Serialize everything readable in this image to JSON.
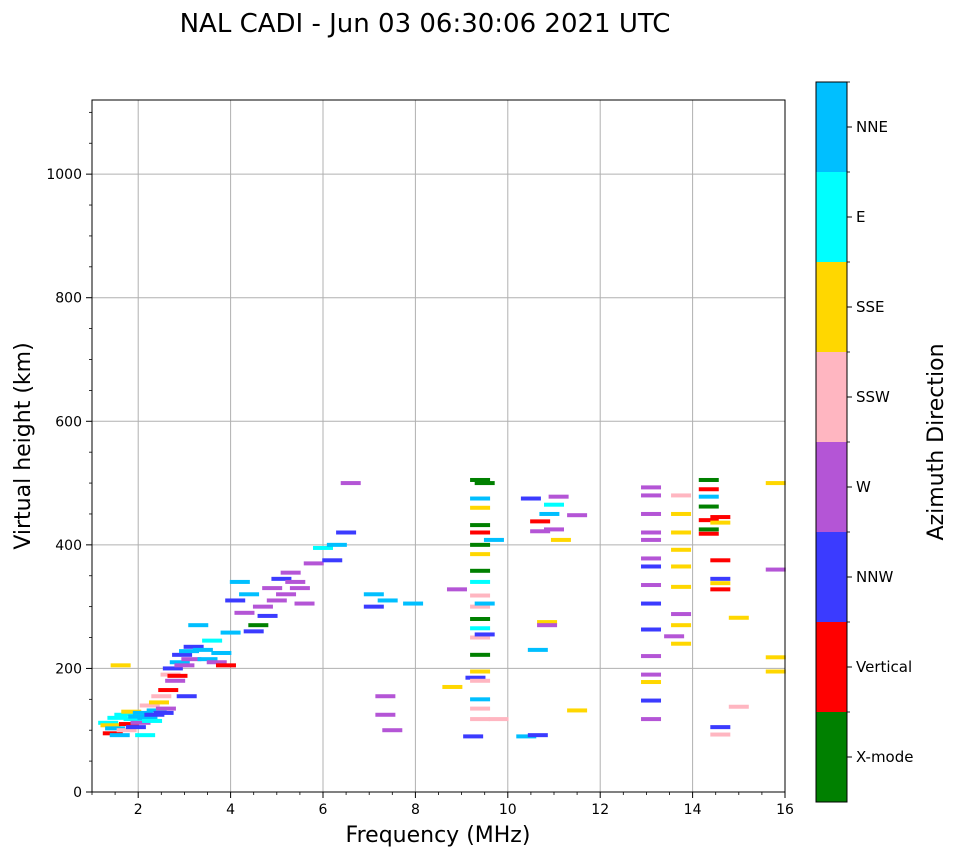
{
  "chart_data": {
    "type": "scatter",
    "title": "NAL CADI - Jun 03 06:30:06 2021 UTC",
    "xlabel": "Frequency (MHz)",
    "ylabel": "Virtual height (km)",
    "xlim": [
      1,
      16
    ],
    "ylim": [
      0,
      1120
    ],
    "xticks": [
      2,
      4,
      6,
      8,
      10,
      12,
      14,
      16
    ],
    "yticks": [
      0,
      200,
      400,
      600,
      800,
      1000
    ],
    "grid": true,
    "colorbar": {
      "label": "Azimuth Direction",
      "categories": [
        {
          "name": "X-mode",
          "color": "#008000"
        },
        {
          "name": "Vertical",
          "color": "#ff0000"
        },
        {
          "name": "NNW",
          "color": "#3b3bff"
        },
        {
          "name": "W",
          "color": "#b455d6"
        },
        {
          "name": "SSW",
          "color": "#ffb6c1"
        },
        {
          "name": "SSE",
          "color": "#ffd700"
        },
        {
          "name": "E",
          "color": "#00ffff"
        },
        {
          "name": "NNE",
          "color": "#00bfff"
        }
      ]
    },
    "points": [
      {
        "f": 1.35,
        "h": 112,
        "dir": "E"
      },
      {
        "f": 1.4,
        "h": 108,
        "dir": "SSE"
      },
      {
        "f": 1.45,
        "h": 95,
        "dir": "Vertical"
      },
      {
        "f": 1.5,
        "h": 103,
        "dir": "NNE"
      },
      {
        "f": 1.55,
        "h": 120,
        "dir": "E"
      },
      {
        "f": 1.6,
        "h": 92,
        "dir": "NNE"
      },
      {
        "f": 1.62,
        "h": 205,
        "dir": "SSE"
      },
      {
        "f": 1.7,
        "h": 125,
        "dir": "E"
      },
      {
        "f": 1.75,
        "h": 100,
        "dir": "SSW"
      },
      {
        "f": 1.8,
        "h": 110,
        "dir": "Vertical"
      },
      {
        "f": 1.85,
        "h": 130,
        "dir": "SSE"
      },
      {
        "f": 1.9,
        "h": 118,
        "dir": "E"
      },
      {
        "f": 1.95,
        "h": 105,
        "dir": "NNW"
      },
      {
        "f": 2.0,
        "h": 122,
        "dir": "NNE"
      },
      {
        "f": 2.05,
        "h": 112,
        "dir": "W"
      },
      {
        "f": 2.1,
        "h": 128,
        "dir": "NNE"
      },
      {
        "f": 2.15,
        "h": 92,
        "dir": "E"
      },
      {
        "f": 2.2,
        "h": 120,
        "dir": "NNE"
      },
      {
        "f": 2.25,
        "h": 140,
        "dir": "SSW"
      },
      {
        "f": 2.3,
        "h": 115,
        "dir": "E"
      },
      {
        "f": 2.35,
        "h": 125,
        "dir": "NNW"
      },
      {
        "f": 2.4,
        "h": 132,
        "dir": "NNE"
      },
      {
        "f": 2.45,
        "h": 145,
        "dir": "SSE"
      },
      {
        "f": 2.5,
        "h": 155,
        "dir": "SSW"
      },
      {
        "f": 2.55,
        "h": 128,
        "dir": "NNW"
      },
      {
        "f": 2.6,
        "h": 135,
        "dir": "W"
      },
      {
        "f": 2.65,
        "h": 165,
        "dir": "Vertical"
      },
      {
        "f": 2.7,
        "h": 190,
        "dir": "SSW"
      },
      {
        "f": 2.75,
        "h": 200,
        "dir": "NNW"
      },
      {
        "f": 2.8,
        "h": 180,
        "dir": "W"
      },
      {
        "f": 2.85,
        "h": 188,
        "dir": "Vertical"
      },
      {
        "f": 2.9,
        "h": 210,
        "dir": "NNE"
      },
      {
        "f": 2.95,
        "h": 222,
        "dir": "NNW"
      },
      {
        "f": 3.0,
        "h": 205,
        "dir": "W"
      },
      {
        "f": 3.05,
        "h": 155,
        "dir": "NNW"
      },
      {
        "f": 3.1,
        "h": 228,
        "dir": "NNE"
      },
      {
        "f": 3.15,
        "h": 215,
        "dir": "W"
      },
      {
        "f": 3.2,
        "h": 235,
        "dir": "NNW"
      },
      {
        "f": 3.3,
        "h": 270,
        "dir": "NNE"
      },
      {
        "f": 3.4,
        "h": 230,
        "dir": "NNE"
      },
      {
        "f": 3.5,
        "h": 215,
        "dir": "NNE"
      },
      {
        "f": 3.6,
        "h": 245,
        "dir": "E"
      },
      {
        "f": 3.7,
        "h": 210,
        "dir": "W"
      },
      {
        "f": 3.8,
        "h": 225,
        "dir": "NNE"
      },
      {
        "f": 3.9,
        "h": 205,
        "dir": "Vertical"
      },
      {
        "f": 4.0,
        "h": 258,
        "dir": "NNE"
      },
      {
        "f": 4.1,
        "h": 310,
        "dir": "NNW"
      },
      {
        "f": 4.2,
        "h": 340,
        "dir": "NNE"
      },
      {
        "f": 4.3,
        "h": 290,
        "dir": "W"
      },
      {
        "f": 4.4,
        "h": 320,
        "dir": "NNE"
      },
      {
        "f": 4.5,
        "h": 260,
        "dir": "NNW"
      },
      {
        "f": 4.6,
        "h": 270,
        "dir": "X-mode"
      },
      {
        "f": 4.7,
        "h": 300,
        "dir": "W"
      },
      {
        "f": 4.8,
        "h": 285,
        "dir": "NNW"
      },
      {
        "f": 4.9,
        "h": 330,
        "dir": "W"
      },
      {
        "f": 5.0,
        "h": 310,
        "dir": "W"
      },
      {
        "f": 5.1,
        "h": 345,
        "dir": "NNW"
      },
      {
        "f": 5.2,
        "h": 320,
        "dir": "W"
      },
      {
        "f": 5.3,
        "h": 355,
        "dir": "W"
      },
      {
        "f": 5.4,
        "h": 340,
        "dir": "W"
      },
      {
        "f": 5.5,
        "h": 330,
        "dir": "W"
      },
      {
        "f": 5.6,
        "h": 305,
        "dir": "W"
      },
      {
        "f": 5.8,
        "h": 370,
        "dir": "W"
      },
      {
        "f": 6.0,
        "h": 395,
        "dir": "E"
      },
      {
        "f": 6.2,
        "h": 375,
        "dir": "NNW"
      },
      {
        "f": 6.3,
        "h": 400,
        "dir": "NNE"
      },
      {
        "f": 6.5,
        "h": 420,
        "dir": "NNW"
      },
      {
        "f": 6.6,
        "h": 500,
        "dir": "W"
      },
      {
        "f": 7.1,
        "h": 320,
        "dir": "NNE"
      },
      {
        "f": 7.1,
        "h": 300,
        "dir": "NNW"
      },
      {
        "f": 7.4,
        "h": 310,
        "dir": "NNE"
      },
      {
        "f": 7.35,
        "h": 155,
        "dir": "W"
      },
      {
        "f": 7.35,
        "h": 125,
        "dir": "W"
      },
      {
        "f": 7.5,
        "h": 100,
        "dir": "W"
      },
      {
        "f": 7.95,
        "h": 305,
        "dir": "NNE"
      },
      {
        "f": 8.8,
        "h": 170,
        "dir": "SSE"
      },
      {
        "f": 8.9,
        "h": 328,
        "dir": "W"
      },
      {
        "f": 9.3,
        "h": 185,
        "dir": "NNW"
      },
      {
        "f": 9.25,
        "h": 90,
        "dir": "NNW"
      },
      {
        "f": 9.4,
        "h": 505,
        "dir": "X-mode"
      },
      {
        "f": 9.4,
        "h": 475,
        "dir": "NNE"
      },
      {
        "f": 9.4,
        "h": 460,
        "dir": "SSE"
      },
      {
        "f": 9.4,
        "h": 432,
        "dir": "X-mode"
      },
      {
        "f": 9.4,
        "h": 420,
        "dir": "Vertical"
      },
      {
        "f": 9.4,
        "h": 400,
        "dir": "X-mode"
      },
      {
        "f": 9.4,
        "h": 385,
        "dir": "SSE"
      },
      {
        "f": 9.4,
        "h": 358,
        "dir": "X-mode"
      },
      {
        "f": 9.4,
        "h": 340,
        "dir": "E"
      },
      {
        "f": 9.4,
        "h": 318,
        "dir": "SSW"
      },
      {
        "f": 9.4,
        "h": 300,
        "dir": "SSW"
      },
      {
        "f": 9.4,
        "h": 280,
        "dir": "X-mode"
      },
      {
        "f": 9.4,
        "h": 265,
        "dir": "E"
      },
      {
        "f": 9.4,
        "h": 250,
        "dir": "SSW"
      },
      {
        "f": 9.4,
        "h": 222,
        "dir": "X-mode"
      },
      {
        "f": 9.4,
        "h": 195,
        "dir": "SSE"
      },
      {
        "f": 9.4,
        "h": 180,
        "dir": "SSW"
      },
      {
        "f": 9.4,
        "h": 150,
        "dir": "NNE"
      },
      {
        "f": 9.4,
        "h": 135,
        "dir": "SSW"
      },
      {
        "f": 9.4,
        "h": 118,
        "dir": "SSW"
      },
      {
        "f": 9.5,
        "h": 500,
        "dir": "X-mode"
      },
      {
        "f": 9.5,
        "h": 305,
        "dir": "NNE"
      },
      {
        "f": 9.5,
        "h": 255,
        "dir": "NNW"
      },
      {
        "f": 9.7,
        "h": 408,
        "dir": "NNE"
      },
      {
        "f": 9.8,
        "h": 118,
        "dir": "SSW"
      },
      {
        "f": 10.4,
        "h": 90,
        "dir": "NNE"
      },
      {
        "f": 10.5,
        "h": 475,
        "dir": "NNW"
      },
      {
        "f": 10.65,
        "h": 230,
        "dir": "NNE"
      },
      {
        "f": 10.7,
        "h": 438,
        "dir": "Vertical"
      },
      {
        "f": 10.7,
        "h": 422,
        "dir": "W"
      },
      {
        "f": 10.65,
        "h": 92,
        "dir": "NNW"
      },
      {
        "f": 10.85,
        "h": 275,
        "dir": "SSE"
      },
      {
        "f": 10.85,
        "h": 270,
        "dir": "W"
      },
      {
        "f": 10.9,
        "h": 450,
        "dir": "NNE"
      },
      {
        "f": 11.0,
        "h": 465,
        "dir": "E"
      },
      {
        "f": 11.0,
        "h": 425,
        "dir": "W"
      },
      {
        "f": 11.1,
        "h": 478,
        "dir": "W"
      },
      {
        "f": 11.15,
        "h": 408,
        "dir": "SSE"
      },
      {
        "f": 11.5,
        "h": 448,
        "dir": "W"
      },
      {
        "f": 11.5,
        "h": 132,
        "dir": "SSE"
      },
      {
        "f": 13.1,
        "h": 493,
        "dir": "W"
      },
      {
        "f": 13.1,
        "h": 480,
        "dir": "W"
      },
      {
        "f": 13.1,
        "h": 450,
        "dir": "W"
      },
      {
        "f": 13.1,
        "h": 420,
        "dir": "W"
      },
      {
        "f": 13.1,
        "h": 408,
        "dir": "W"
      },
      {
        "f": 13.1,
        "h": 378,
        "dir": "W"
      },
      {
        "f": 13.1,
        "h": 365,
        "dir": "NNW"
      },
      {
        "f": 13.1,
        "h": 335,
        "dir": "W"
      },
      {
        "f": 13.1,
        "h": 305,
        "dir": "NNW"
      },
      {
        "f": 13.1,
        "h": 263,
        "dir": "NNW"
      },
      {
        "f": 13.1,
        "h": 220,
        "dir": "W"
      },
      {
        "f": 13.1,
        "h": 190,
        "dir": "W"
      },
      {
        "f": 13.1,
        "h": 178,
        "dir": "SSE"
      },
      {
        "f": 13.1,
        "h": 148,
        "dir": "NNW"
      },
      {
        "f": 13.1,
        "h": 118,
        "dir": "W"
      },
      {
        "f": 13.75,
        "h": 480,
        "dir": "SSW"
      },
      {
        "f": 13.75,
        "h": 450,
        "dir": "SSE"
      },
      {
        "f": 13.75,
        "h": 420,
        "dir": "SSE"
      },
      {
        "f": 13.75,
        "h": 392,
        "dir": "SSE"
      },
      {
        "f": 13.75,
        "h": 365,
        "dir": "SSE"
      },
      {
        "f": 13.75,
        "h": 332,
        "dir": "SSE"
      },
      {
        "f": 13.75,
        "h": 288,
        "dir": "W"
      },
      {
        "f": 13.75,
        "h": 270,
        "dir": "SSE"
      },
      {
        "f": 13.75,
        "h": 240,
        "dir": "SSE"
      },
      {
        "f": 13.6,
        "h": 252,
        "dir": "W"
      },
      {
        "f": 14.35,
        "h": 505,
        "dir": "X-mode"
      },
      {
        "f": 14.35,
        "h": 490,
        "dir": "Vertical"
      },
      {
        "f": 14.35,
        "h": 478,
        "dir": "NNE"
      },
      {
        "f": 14.35,
        "h": 462,
        "dir": "X-mode"
      },
      {
        "f": 14.35,
        "h": 440,
        "dir": "Vertical"
      },
      {
        "f": 14.35,
        "h": 425,
        "dir": "X-mode"
      },
      {
        "f": 14.35,
        "h": 418,
        "dir": "Vertical"
      },
      {
        "f": 14.6,
        "h": 445,
        "dir": "Vertical"
      },
      {
        "f": 14.6,
        "h": 436,
        "dir": "SSE"
      },
      {
        "f": 14.6,
        "h": 375,
        "dir": "Vertical"
      },
      {
        "f": 14.6,
        "h": 345,
        "dir": "NNW"
      },
      {
        "f": 14.6,
        "h": 338,
        "dir": "SSE"
      },
      {
        "f": 14.6,
        "h": 328,
        "dir": "Vertical"
      },
      {
        "f": 14.6,
        "h": 105,
        "dir": "NNW"
      },
      {
        "f": 14.6,
        "h": 93,
        "dir": "SSW"
      },
      {
        "f": 15.0,
        "h": 282,
        "dir": "SSE"
      },
      {
        "f": 15.0,
        "h": 138,
        "dir": "SSW"
      },
      {
        "f": 15.8,
        "h": 500,
        "dir": "SSE"
      },
      {
        "f": 15.8,
        "h": 360,
        "dir": "W"
      },
      {
        "f": 15.8,
        "h": 218,
        "dir": "SSE"
      },
      {
        "f": 15.8,
        "h": 195,
        "dir": "SSE"
      }
    ]
  }
}
